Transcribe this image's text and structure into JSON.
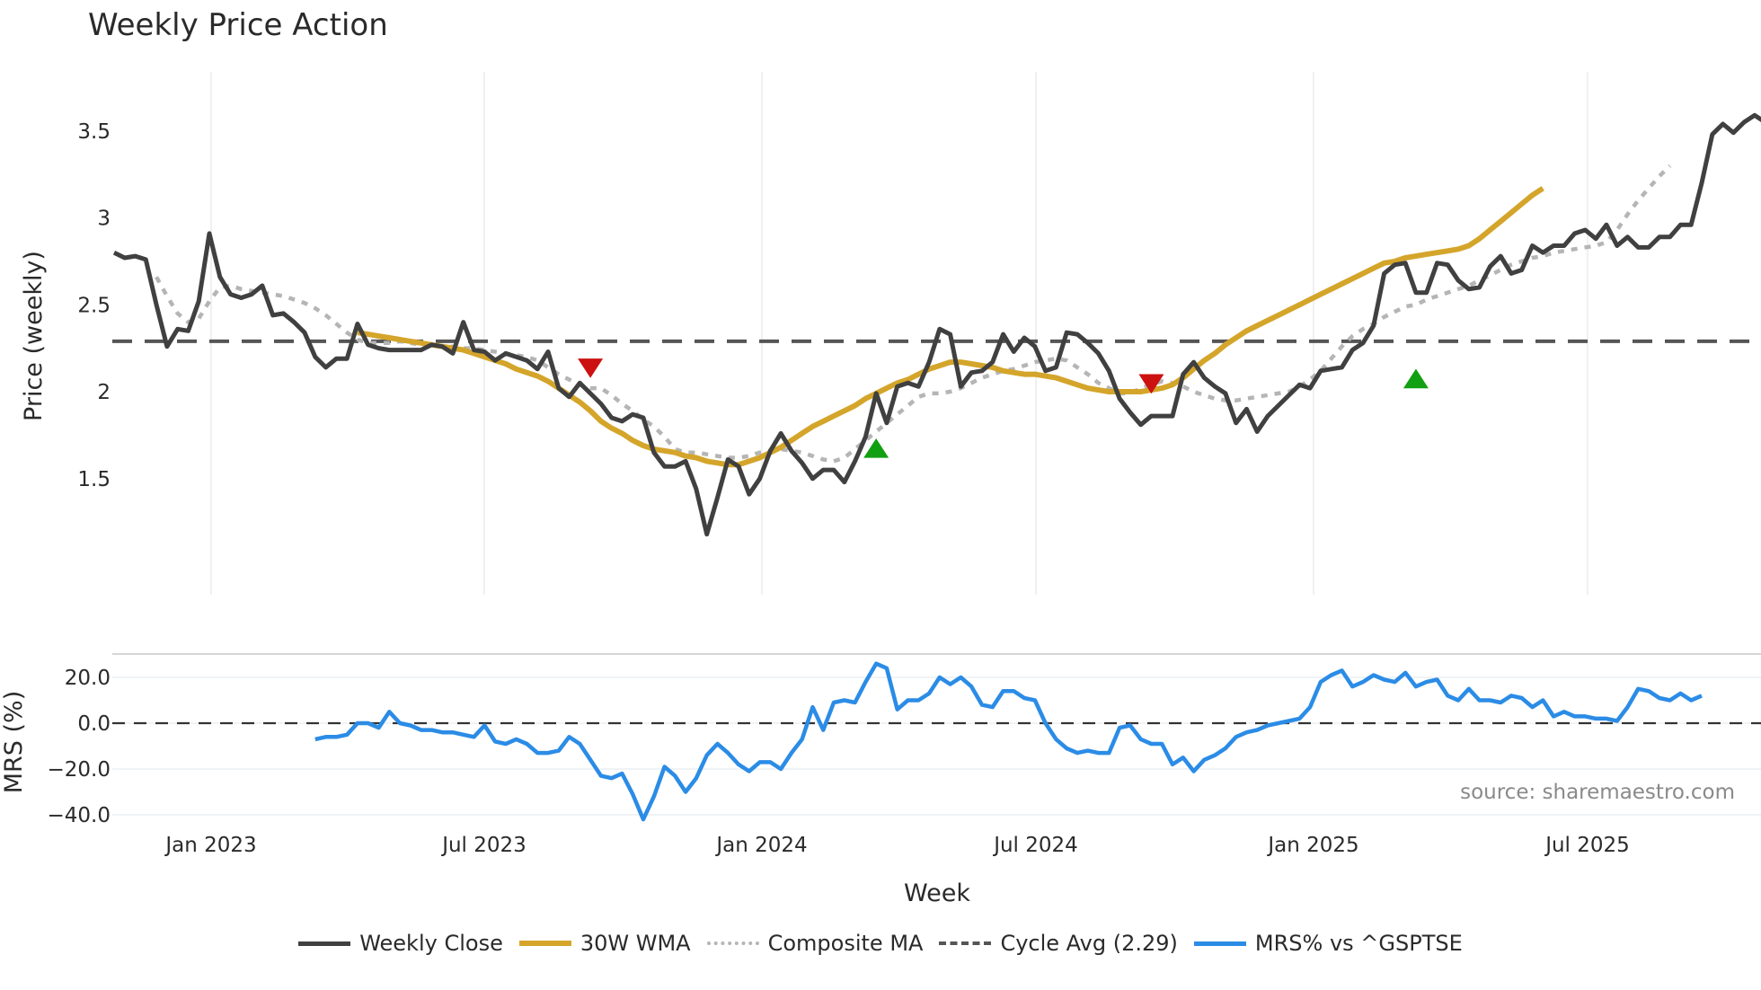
{
  "title": "Weekly Price Action",
  "source_note": "source: sharemaestro.com",
  "legend": [
    {
      "label": "Weekly Close",
      "color": "#404040",
      "style": "solid",
      "width": 5
    },
    {
      "label": "30W WMA",
      "color": "#d4a52a",
      "style": "solid",
      "width": 6
    },
    {
      "label": "Composite MA",
      "color": "#b5b5b5",
      "style": "dotted",
      "width": 4
    },
    {
      "label": "Cycle Avg (2.29)",
      "color": "#555555",
      "style": "dashed",
      "width": 4
    },
    {
      "label": "MRS% vs ^GSPTSE",
      "color": "#2b8ce6",
      "style": "solid",
      "width": 5
    }
  ],
  "chart_data": [
    {
      "type": "line",
      "title": "Weekly Price Action",
      "xlabel": "Week",
      "ylabel": "Price (weekly)",
      "ylim": [
        1.05,
        3.78
      ],
      "yticks": [
        1.5,
        2,
        2.5,
        3,
        3.5
      ],
      "ytick_labels": [
        "1.5",
        "2",
        "2.5",
        "3",
        "3.5"
      ],
      "xticks": [
        "Jan 2023",
        "Jul 2023",
        "Jan 2024",
        "Jul 2024",
        "Jan 2025",
        "Jul 2025"
      ],
      "x_start_week_offset": -9,
      "grid": "vertical",
      "cycle_avg": 2.29,
      "series": [
        {
          "name": "Weekly Close",
          "start_index": 0,
          "values": [
            2.8,
            2.77,
            2.78,
            2.76,
            2.5,
            2.26,
            2.36,
            2.35,
            2.52,
            2.91,
            2.66,
            2.56,
            2.54,
            2.56,
            2.61,
            2.44,
            2.45,
            2.4,
            2.34,
            2.2,
            2.14,
            2.19,
            2.19,
            2.39,
            2.27,
            2.25,
            2.24,
            2.24,
            2.24,
            2.24,
            2.27,
            2.26,
            2.22,
            2.4,
            2.24,
            2.23,
            2.18,
            2.22,
            2.2,
            2.18,
            2.13,
            2.23,
            2.02,
            1.97,
            2.05,
            1.99,
            1.93,
            1.85,
            1.83,
            1.87,
            1.85,
            1.65,
            1.57,
            1.57,
            1.6,
            1.44,
            1.18,
            1.39,
            1.61,
            1.57,
            1.41,
            1.5,
            1.66,
            1.76,
            1.66,
            1.59,
            1.5,
            1.55,
            1.55,
            1.48,
            1.6,
            1.74,
            1.99,
            1.82,
            2.03,
            2.05,
            2.03,
            2.17,
            2.36,
            2.33,
            2.03,
            2.11,
            2.12,
            2.17,
            2.33,
            2.23,
            2.31,
            2.26,
            2.12,
            2.14,
            2.34,
            2.33,
            2.28,
            2.22,
            2.12,
            1.96,
            1.88,
            1.81,
            1.86,
            1.86,
            1.86,
            2.1,
            2.17,
            2.08,
            2.03,
            1.99,
            1.82,
            1.9,
            1.77,
            1.86,
            1.92,
            1.98,
            2.04,
            2.02,
            2.12,
            2.13,
            2.14,
            2.24,
            2.28,
            2.38,
            2.68,
            2.73,
            2.74,
            2.57,
            2.57,
            2.74,
            2.73,
            2.64,
            2.59,
            2.6,
            2.72,
            2.78,
            2.68,
            2.7,
            2.84,
            2.8,
            2.84,
            2.84,
            2.91,
            2.93,
            2.88,
            2.96,
            2.84,
            2.89,
            2.83,
            2.83,
            2.89,
            2.89,
            2.96,
            2.96,
            3.2,
            3.48,
            3.54,
            3.49,
            3.55,
            3.59,
            3.55,
            3.69
          ]
        },
        {
          "name": "30W WMA",
          "start_index": 23,
          "values": [
            2.34,
            2.33,
            2.32,
            2.31,
            2.3,
            2.29,
            2.28,
            2.27,
            2.26,
            2.25,
            2.24,
            2.22,
            2.2,
            2.18,
            2.16,
            2.13,
            2.11,
            2.09,
            2.06,
            2.02,
            1.98,
            1.94,
            1.89,
            1.83,
            1.79,
            1.76,
            1.72,
            1.69,
            1.67,
            1.66,
            1.65,
            1.63,
            1.62,
            1.6,
            1.59,
            1.58,
            1.58,
            1.6,
            1.62,
            1.65,
            1.68,
            1.72,
            1.76,
            1.8,
            1.83,
            1.86,
            1.89,
            1.92,
            1.96,
            1.99,
            2.02,
            2.05,
            2.07,
            2.1,
            2.13,
            2.15,
            2.17,
            2.17,
            2.16,
            2.15,
            2.14,
            2.12,
            2.11,
            2.1,
            2.1,
            2.09,
            2.08,
            2.06,
            2.04,
            2.02,
            2.01,
            2.0,
            2.0,
            2.0,
            2.0,
            2.01,
            2.02,
            2.04,
            2.08,
            2.13,
            2.18,
            2.22,
            2.27,
            2.31,
            2.35,
            2.38,
            2.41,
            2.44,
            2.47,
            2.5,
            2.53,
            2.56,
            2.59,
            2.62,
            2.65,
            2.68,
            2.71,
            2.74,
            2.75,
            2.77,
            2.78,
            2.79,
            2.8,
            2.81,
            2.82,
            2.84,
            2.88,
            2.93,
            2.98,
            3.03,
            3.08,
            3.13,
            3.17
          ]
        },
        {
          "name": "Composite MA",
          "start_index": 4,
          "values": [
            2.66,
            2.55,
            2.45,
            2.4,
            2.42,
            2.52,
            2.6,
            2.61,
            2.59,
            2.58,
            2.57,
            2.56,
            2.55,
            2.53,
            2.51,
            2.48,
            2.44,
            2.39,
            2.34,
            2.3,
            2.28,
            2.28,
            2.28,
            2.29,
            2.28,
            2.27,
            2.27,
            2.26,
            2.26,
            2.25,
            2.25,
            2.24,
            2.23,
            2.22,
            2.21,
            2.2,
            2.18,
            2.14,
            2.1,
            2.07,
            2.04,
            2.02,
            2.02,
            1.98,
            1.93,
            1.89,
            1.84,
            1.8,
            1.74,
            1.67,
            1.65,
            1.65,
            1.64,
            1.63,
            1.62,
            1.62,
            1.63,
            1.65,
            1.66,
            1.67,
            1.66,
            1.65,
            1.63,
            1.61,
            1.6,
            1.62,
            1.67,
            1.72,
            1.77,
            1.82,
            1.87,
            1.92,
            1.97,
            1.99,
            1.99,
            2.0,
            2.02,
            2.05,
            2.08,
            2.1,
            2.12,
            2.13,
            2.15,
            2.17,
            2.18,
            2.19,
            2.18,
            2.14,
            2.1,
            2.05,
            2.02,
            1.99,
            1.99,
            2.02,
            2.04,
            2.06,
            2.05,
            2.03,
            2.0,
            1.98,
            1.96,
            1.95,
            1.95,
            1.96,
            1.97,
            1.98,
            1.99,
            2.0,
            2.03,
            2.07,
            2.12,
            2.19,
            2.26,
            2.32,
            2.36,
            2.39,
            2.43,
            2.46,
            2.49,
            2.5,
            2.53,
            2.55,
            2.57,
            2.59,
            2.61,
            2.64,
            2.67,
            2.7,
            2.73,
            2.75,
            2.77,
            2.78,
            2.8,
            2.81,
            2.82,
            2.83,
            2.84,
            2.86,
            2.93,
            3.02,
            3.1,
            3.17,
            3.24,
            3.3
          ]
        }
      ],
      "markers": [
        {
          "type": "sell",
          "shape": "triangle-down",
          "color": "#cc1111",
          "index": 45,
          "value": 2.14
        },
        {
          "type": "buy",
          "shape": "triangle-up",
          "color": "#11a011",
          "index": 72,
          "value": 1.67
        },
        {
          "type": "sell",
          "shape": "triangle-down",
          "color": "#cc1111",
          "index": 98,
          "value": 2.05
        },
        {
          "type": "buy",
          "shape": "triangle-up",
          "color": "#11a011",
          "index": 123,
          "value": 2.07
        }
      ]
    },
    {
      "type": "line",
      "ylabel": "MRS (%)",
      "ylim": [
        -45,
        30
      ],
      "yticks": [
        20,
        0,
        -20,
        -40
      ],
      "ytick_labels": [
        "20.0",
        "0.0",
        "−20.0",
        "−40.0"
      ],
      "zero_line": 0,
      "series": [
        {
          "name": "MRS% vs ^GSPTSE",
          "start_index": 19,
          "values": [
            -7,
            -6,
            -6,
            -5,
            0,
            0,
            -2,
            5,
            0,
            -1,
            -3,
            -3,
            -4,
            -4,
            -5,
            -6,
            -1,
            -8,
            -9,
            -7,
            -9,
            -13,
            -13,
            -12,
            -6,
            -9,
            -16,
            -23,
            -24,
            -22,
            -31,
            -42,
            -32,
            -19,
            -23,
            -30,
            -24,
            -14,
            -9,
            -13,
            -18,
            -21,
            -17,
            -17,
            -20,
            -13,
            -7,
            7,
            -3,
            9,
            10,
            9,
            18,
            26,
            24,
            6,
            10,
            10,
            13,
            20,
            17,
            20,
            16,
            8,
            7,
            14,
            14,
            11,
            10,
            0,
            -7,
            -11,
            -13,
            -12,
            -13,
            -13,
            -2,
            -1,
            -7,
            -9,
            -9,
            -18,
            -15,
            -21,
            -16,
            -14,
            -11,
            -6,
            -4,
            -3,
            -1,
            0,
            1,
            2,
            7,
            18,
            21,
            23,
            16,
            18,
            21,
            19,
            18,
            22,
            16,
            18,
            19,
            12,
            10,
            15,
            10,
            10,
            9,
            12,
            11,
            7,
            10,
            3,
            5,
            3,
            3,
            2,
            2,
            1,
            7,
            15,
            14,
            11,
            10,
            13,
            10,
            12
          ]
        }
      ]
    }
  ],
  "axes": {
    "price_ylabel": "Price (weekly)",
    "mrs_ylabel": "MRS (%)",
    "xlabel": "Week",
    "xticks": [
      "Jan 2023",
      "Jul 2023",
      "Jan 2024",
      "Jul 2024",
      "Jan 2025",
      "Jul 2025"
    ]
  }
}
